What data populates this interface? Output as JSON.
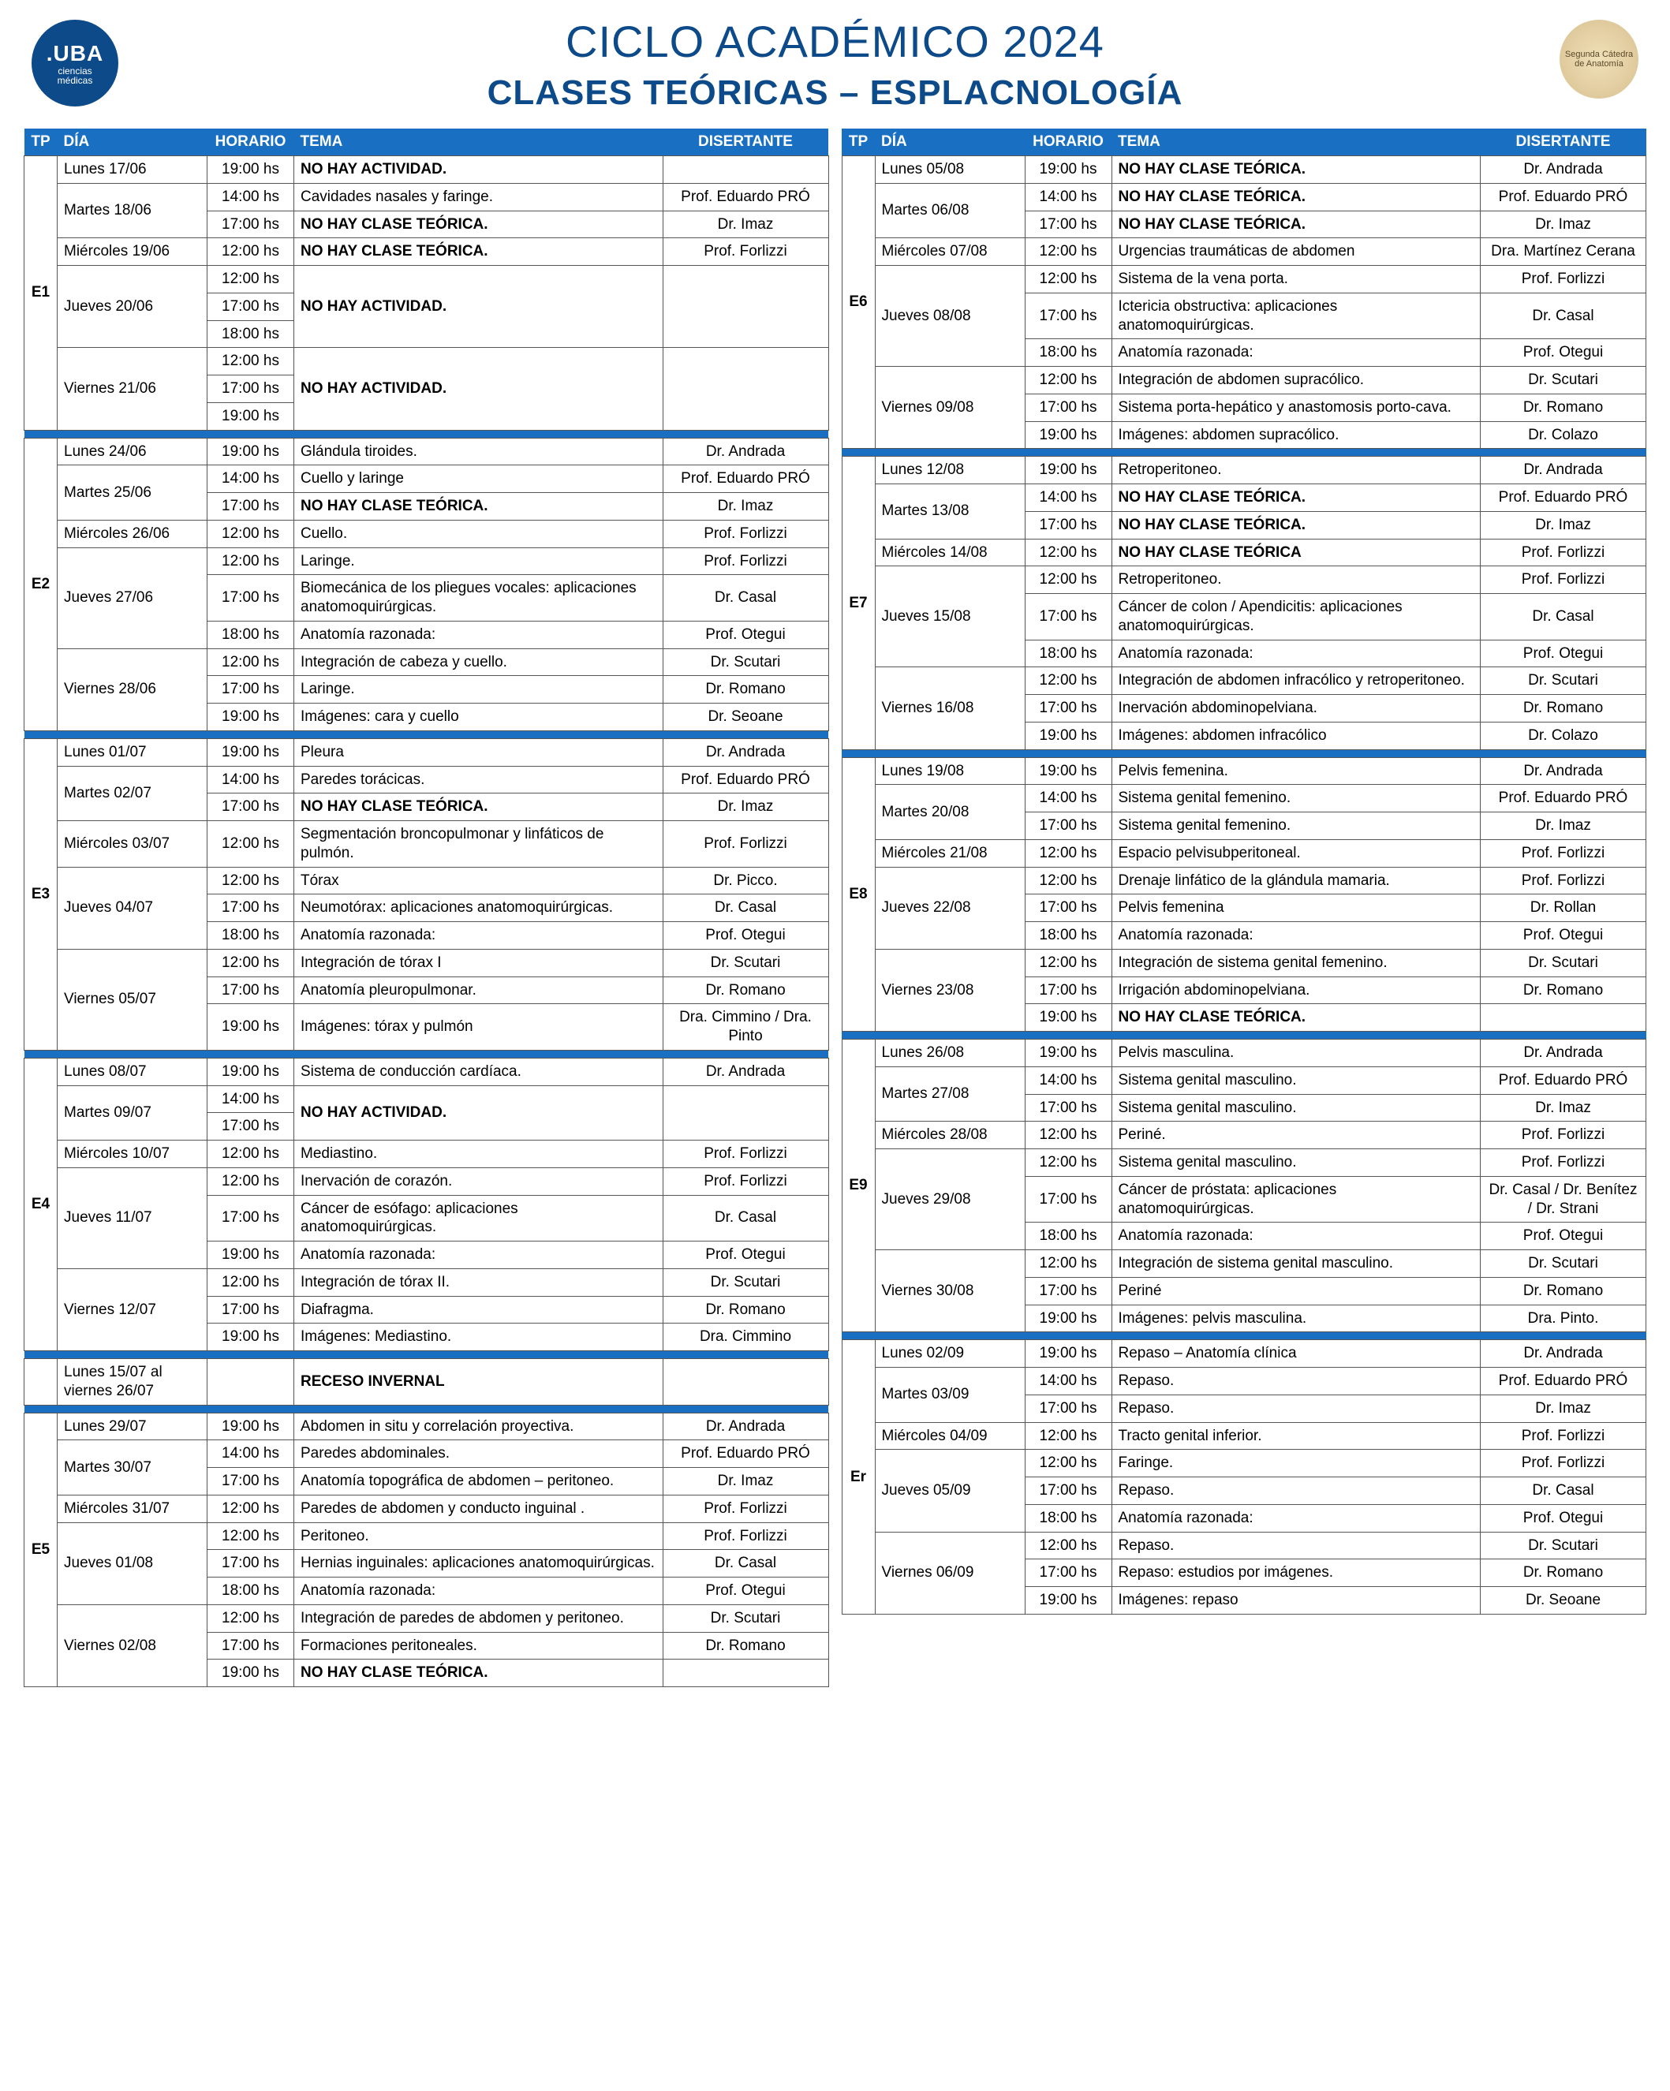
{
  "header": {
    "logo_left_main": ".UBA",
    "logo_left_sub1": "ciencias",
    "logo_left_sub2": "médicas",
    "logo_right": "Segunda Cátedra de Anatomía",
    "title1": "CICLO ACADÉMICO 2024",
    "title2": "CLASES TEÓRICAS – ESPLACNOLOGÍA"
  },
  "colhead": {
    "tp": "TP",
    "dia": "DÍA",
    "hor": "HORARIO",
    "tema": "TEMA",
    "dis": "DISERTANTE"
  },
  "left": [
    {
      "tp": "E1",
      "rows": [
        {
          "dia": "Lunes 17/06",
          "diaspan": 1,
          "hor": "19:00 hs",
          "tema": "NO HAY ACTIVIDAD.",
          "bold": true,
          "dis": "",
          "temaspan": 1
        },
        {
          "dia": "Martes 18/06",
          "diaspan": 2,
          "hor": "14:00 hs",
          "tema": "Cavidades nasales y faringe.",
          "dis": "Prof. Eduardo PRÓ"
        },
        {
          "hor": "17:00 hs",
          "tema": "NO HAY CLASE TEÓRICA.",
          "bold": true,
          "dis": "Dr. Imaz"
        },
        {
          "dia": "Miércoles 19/06",
          "diaspan": 1,
          "hor": "12:00 hs",
          "tema": "NO HAY CLASE TEÓRICA.",
          "bold": true,
          "dis": "Prof. Forlizzi"
        },
        {
          "dia": "Jueves 20/06",
          "diaspan": 3,
          "hor": "12:00 hs",
          "tema": "NO HAY ACTIVIDAD.",
          "bold": true,
          "temaspan": 3,
          "disspan": 3,
          "dis": ""
        },
        {
          "hor": "17:00 hs"
        },
        {
          "hor": "18:00 hs"
        },
        {
          "dia": "Viernes 21/06",
          "diaspan": 3,
          "hor": "12:00 hs",
          "tema": "NO HAY ACTIVIDAD.",
          "bold": true,
          "temaspan": 3,
          "disspan": 3,
          "dis": ""
        },
        {
          "hor": "17:00 hs"
        },
        {
          "hor": "19:00 hs"
        }
      ]
    },
    {
      "tp": "E2",
      "rows": [
        {
          "dia": "Lunes 24/06",
          "diaspan": 1,
          "hor": "19:00 hs",
          "tema": "Glándula tiroides.",
          "dis": "Dr. Andrada"
        },
        {
          "dia": "Martes 25/06",
          "diaspan": 2,
          "hor": "14:00 hs",
          "tema": "Cuello y laringe",
          "dis": "Prof. Eduardo PRÓ"
        },
        {
          "hor": "17:00 hs",
          "tema": "NO HAY CLASE TEÓRICA.",
          "bold": true,
          "dis": "Dr. Imaz"
        },
        {
          "dia": "Miércoles 26/06",
          "diaspan": 1,
          "hor": "12:00 hs",
          "tema": "Cuello.",
          "dis": "Prof. Forlizzi"
        },
        {
          "dia": "Jueves 27/06",
          "diaspan": 3,
          "hor": "12:00 hs",
          "tema": "Laringe.",
          "dis": "Prof. Forlizzi"
        },
        {
          "hor": "17:00 hs",
          "tema": "Biomecánica de los pliegues vocales: aplicaciones anatomoquirúrgicas.",
          "dis": "Dr. Casal"
        },
        {
          "hor": "18:00 hs",
          "tema": "Anatomía razonada:",
          "dis": "Prof. Otegui"
        },
        {
          "dia": "Viernes 28/06",
          "diaspan": 3,
          "hor": "12:00 hs",
          "tema": "Integración de cabeza y cuello.",
          "dis": "Dr. Scutari"
        },
        {
          "hor": "17:00 hs",
          "tema": "Laringe.",
          "dis": "Dr. Romano"
        },
        {
          "hor": "19:00 hs",
          "tema": "Imágenes:  cara y cuello",
          "dis": "Dr. Seoane"
        }
      ]
    },
    {
      "tp": "E3",
      "rows": [
        {
          "dia": "Lunes 01/07",
          "diaspan": 1,
          "hor": "19:00 hs",
          "tema": "Pleura",
          "dis": "Dr. Andrada"
        },
        {
          "dia": "Martes 02/07",
          "diaspan": 2,
          "hor": "14:00 hs",
          "tema": "Paredes torácicas.",
          "dis": "Prof. Eduardo PRÓ"
        },
        {
          "hor": "17:00 hs",
          "tema": "NO HAY CLASE TEÓRICA.",
          "bold": true,
          "dis": "Dr. Imaz"
        },
        {
          "dia": "Miércoles 03/07",
          "diaspan": 1,
          "hor": "12:00 hs",
          "tema": "Segmentación broncopulmonar y linfáticos de pulmón.",
          "dis": "Prof. Forlizzi"
        },
        {
          "dia": "Jueves 04/07",
          "diaspan": 3,
          "hor": "12:00 hs",
          "tema": "Tórax",
          "dis": "Dr. Picco."
        },
        {
          "hor": "17:00 hs",
          "tema": "Neumotórax: aplicaciones anatomoquirúrgicas.",
          "dis": "Dr. Casal"
        },
        {
          "hor": "18:00 hs",
          "tema": "Anatomía razonada:",
          "dis": "Prof. Otegui"
        },
        {
          "dia": "Viernes 05/07",
          "diaspan": 3,
          "hor": "12:00 hs",
          "tema": "Integración de tórax I",
          "dis": "Dr. Scutari"
        },
        {
          "hor": "17:00 hs",
          "tema": "Anatomía pleuropulmonar.",
          "dis": "Dr. Romano"
        },
        {
          "hor": "19:00 hs",
          "tema": "Imágenes: tórax y pulmón",
          "dis": "Dra. Cimmino / Dra. Pinto"
        }
      ]
    },
    {
      "tp": "E4",
      "rows": [
        {
          "dia": "Lunes 08/07",
          "diaspan": 1,
          "hor": "19:00 hs",
          "tema": "Sistema de conducción cardíaca.",
          "dis": "Dr. Andrada"
        },
        {
          "dia": "Martes 09/07",
          "diaspan": 2,
          "hor": "14:00 hs",
          "tema": "NO HAY ACTIVIDAD.",
          "bold": true,
          "temaspan": 2,
          "disspan": 2,
          "dis": ""
        },
        {
          "hor": "17:00 hs"
        },
        {
          "dia": "Miércoles 10/07",
          "diaspan": 1,
          "hor": "12:00 hs",
          "tema": "Mediastino.",
          "dis": "Prof. Forlizzi"
        },
        {
          "dia": "Jueves 11/07",
          "diaspan": 3,
          "hor": "12:00 hs",
          "tema": "Inervación de corazón.",
          "dis": "Prof. Forlizzi"
        },
        {
          "hor": "17:00 hs",
          "tema": "Cáncer de esófago: aplicaciones anatomoquirúrgicas.",
          "dis": "Dr. Casal"
        },
        {
          "hor": "19:00 hs",
          "tema": "Anatomía razonada:",
          "dis": "Prof. Otegui"
        },
        {
          "dia": "Viernes 12/07",
          "diaspan": 3,
          "hor": "12:00 hs",
          "tema": "Integración de tórax II.",
          "dis": "Dr. Scutari"
        },
        {
          "hor": "17:00 hs",
          "tema": "Diafragma.",
          "dis": "Dr. Romano"
        },
        {
          "hor": "19:00 hs",
          "tema": "Imágenes: Mediastino.",
          "dis": "Dra. Cimmino"
        }
      ]
    },
    {
      "tp": "",
      "rows": [
        {
          "dia": "Lunes 15/07 al viernes 26/07",
          "diaspan": 1,
          "hor": "",
          "tema": "RECESO INVERNAL",
          "bold": true,
          "dis": ""
        }
      ]
    },
    {
      "tp": "E5",
      "rows": [
        {
          "dia": "Lunes 29/07",
          "diaspan": 1,
          "hor": "19:00 hs",
          "tema": "Abdomen in situ y correlación proyectiva.",
          "dis": "Dr. Andrada"
        },
        {
          "dia": "Martes 30/07",
          "diaspan": 2,
          "hor": "14:00 hs",
          "tema": "Paredes abdominales.",
          "dis": "Prof. Eduardo PRÓ"
        },
        {
          "hor": "17:00 hs",
          "tema": "Anatomía topográfica de abdomen – peritoneo.",
          "dis": "Dr. Imaz"
        },
        {
          "dia": "Miércoles 31/07",
          "diaspan": 1,
          "hor": "12:00 hs",
          "tema": "Paredes de abdomen y conducto inguinal .",
          "dis": "Prof. Forlizzi"
        },
        {
          "dia": "Jueves 01/08",
          "diaspan": 3,
          "hor": "12:00 hs",
          "tema": "Peritoneo.",
          "dis": "Prof. Forlizzi"
        },
        {
          "hor": "17:00 hs",
          "tema": "Hernias inguinales: aplicaciones anatomoquirúrgicas.",
          "dis": "Dr. Casal"
        },
        {
          "hor": "18:00 hs",
          "tema": "Anatomía razonada:",
          "dis": "Prof. Otegui"
        },
        {
          "dia": "Viernes 02/08",
          "diaspan": 3,
          "hor": "12:00 hs",
          "tema": "Integración de paredes de abdomen y peritoneo.",
          "dis": "Dr. Scutari"
        },
        {
          "hor": "17:00 hs",
          "tema": "Formaciones peritoneales.",
          "dis": "Dr. Romano"
        },
        {
          "hor": "19:00 hs",
          "tema": "NO HAY CLASE TEÓRICA.",
          "bold": true,
          "dis": ""
        }
      ]
    }
  ],
  "right": [
    {
      "tp": "E6",
      "rows": [
        {
          "dia": "Lunes 05/08",
          "diaspan": 1,
          "hor": "19:00 hs",
          "tema": "NO HAY CLASE TEÓRICA.",
          "bold": true,
          "dis": "Dr. Andrada"
        },
        {
          "dia": "Martes 06/08",
          "diaspan": 2,
          "hor": "14:00 hs",
          "tema": "NO HAY CLASE TEÓRICA.",
          "bold": true,
          "dis": "Prof. Eduardo PRÓ"
        },
        {
          "hor": "17:00 hs",
          "tema": "NO HAY CLASE TEÓRICA.",
          "bold": true,
          "dis": "Dr. Imaz"
        },
        {
          "dia": "Miércoles 07/08",
          "diaspan": 1,
          "hor": "12:00 hs",
          "tema": "Urgencias traumáticas de abdomen",
          "dis": "Dra. Martínez Cerana"
        },
        {
          "dia": "Jueves 08/08",
          "diaspan": 3,
          "hor": "12:00 hs",
          "tema": "Sistema de la vena porta.",
          "dis": "Prof. Forlizzi"
        },
        {
          "hor": "17:00 hs",
          "tema": "Ictericia obstructiva: aplicaciones anatomoquirúrgicas.",
          "dis": "Dr. Casal"
        },
        {
          "hor": "18:00 hs",
          "tema": "Anatomía razonada:",
          "dis": "Prof. Otegui"
        },
        {
          "dia": "Viernes 09/08",
          "diaspan": 3,
          "hor": "12:00 hs",
          "tema": "Integración de abdomen supracólico.",
          "dis": "Dr. Scutari"
        },
        {
          "hor": "17:00 hs",
          "tema": "Sistema porta-hepático y anastomosis porto-cava.",
          "dis": "Dr. Romano"
        },
        {
          "hor": "19:00 hs",
          "tema": "Imágenes: abdomen supracólico.",
          "dis": "Dr. Colazo"
        }
      ]
    },
    {
      "tp": "E7",
      "rows": [
        {
          "dia": "Lunes 12/08",
          "diaspan": 1,
          "hor": "19:00 hs",
          "tema": "Retroperitoneo.",
          "dis": "Dr. Andrada"
        },
        {
          "dia": "Martes 13/08",
          "diaspan": 2,
          "hor": "14:00 hs",
          "tema": "NO HAY CLASE TEÓRICA.",
          "bold": true,
          "dis": "Prof. Eduardo PRÓ"
        },
        {
          "hor": "17:00 hs",
          "tema": "NO HAY CLASE TEÓRICA.",
          "bold": true,
          "dis": "Dr. Imaz"
        },
        {
          "dia": "Miércoles 14/08",
          "diaspan": 1,
          "hor": "12:00 hs",
          "tema": "NO HAY CLASE TEÓRICA",
          "bold": true,
          "dis": "Prof. Forlizzi"
        },
        {
          "dia": "Jueves 15/08",
          "diaspan": 3,
          "hor": "12:00 hs",
          "tema": "Retroperitoneo.",
          "dis": "Prof. Forlizzi"
        },
        {
          "hor": "17:00 hs",
          "tema": "Cáncer de colon / Apendicitis: aplicaciones anatomoquirúrgicas.",
          "dis": "Dr. Casal"
        },
        {
          "hor": "18:00 hs",
          "tema": "Anatomía razonada:",
          "dis": "Prof. Otegui"
        },
        {
          "dia": "Viernes 16/08",
          "diaspan": 3,
          "hor": "12:00 hs",
          "tema": "Integración de abdomen infracólico y retroperitoneo.",
          "dis": "Dr. Scutari"
        },
        {
          "hor": "17:00 hs",
          "tema": "Inervación abdominopelviana.",
          "dis": "Dr. Romano"
        },
        {
          "hor": "19:00 hs",
          "tema": "Imágenes: abdomen infracólico",
          "dis": "Dr. Colazo"
        }
      ]
    },
    {
      "tp": "E8",
      "rows": [
        {
          "dia": "Lunes 19/08",
          "diaspan": 1,
          "hor": "19:00 hs",
          "tema": "Pelvis femenina.",
          "dis": "Dr. Andrada"
        },
        {
          "dia": "Martes 20/08",
          "diaspan": 2,
          "hor": "14:00 hs",
          "tema": "Sistema genital femenino.",
          "dis": "Prof. Eduardo PRÓ"
        },
        {
          "hor": "17:00 hs",
          "tema": "Sistema genital femenino.",
          "dis": "Dr. Imaz"
        },
        {
          "dia": "Miércoles 21/08",
          "diaspan": 1,
          "hor": "12:00 hs",
          "tema": "Espacio pelvisubperitoneal.",
          "dis": "Prof. Forlizzi"
        },
        {
          "dia": "Jueves 22/08",
          "diaspan": 3,
          "hor": "12:00 hs",
          "tema": "Drenaje linfático de la glándula mamaria.",
          "dis": "Prof. Forlizzi"
        },
        {
          "hor": "17:00 hs",
          "tema": "Pelvis femenina",
          "dis": "Dr. Rollan"
        },
        {
          "hor": "18:00 hs",
          "tema": "Anatomía razonada:",
          "dis": "Prof. Otegui"
        },
        {
          "dia": "Viernes 23/08",
          "diaspan": 3,
          "hor": "12:00 hs",
          "tema": "Integración de sistema genital femenino.",
          "dis": "Dr. Scutari"
        },
        {
          "hor": "17:00 hs",
          "tema": "Irrigación abdominopelviana.",
          "dis": "Dr. Romano"
        },
        {
          "hor": "19:00 hs",
          "tema": "NO HAY CLASE TEÓRICA.",
          "bold": true,
          "dis": ""
        }
      ]
    },
    {
      "tp": "E9",
      "rows": [
        {
          "dia": "Lunes 26/08",
          "diaspan": 1,
          "hor": "19:00 hs",
          "tema": "Pelvis masculina.",
          "dis": "Dr. Andrada"
        },
        {
          "dia": "Martes 27/08",
          "diaspan": 2,
          "hor": "14:00 hs",
          "tema": "Sistema genital masculino.",
          "dis": "Prof. Eduardo PRÓ"
        },
        {
          "hor": "17:00 hs",
          "tema": "Sistema genital masculino.",
          "dis": "Dr. Imaz"
        },
        {
          "dia": "Miércoles 28/08",
          "diaspan": 1,
          "hor": "12:00 hs",
          "tema": "Periné.",
          "dis": "Prof. Forlizzi"
        },
        {
          "dia": "Jueves 29/08",
          "diaspan": 3,
          "hor": "12:00 hs",
          "tema": "Sistema genital masculino.",
          "dis": "Prof. Forlizzi"
        },
        {
          "hor": "17:00 hs",
          "tema": "Cáncer de próstata: aplicaciones anatomoquirúrgicas.",
          "dis": "Dr. Casal / Dr. Benítez / Dr. Strani"
        },
        {
          "hor": "18:00 hs",
          "tema": "Anatomía razonada:",
          "dis": "Prof. Otegui"
        },
        {
          "dia": "Viernes 30/08",
          "diaspan": 3,
          "hor": "12:00 hs",
          "tema": "Integración de sistema genital masculino.",
          "dis": "Dr. Scutari"
        },
        {
          "hor": "17:00 hs",
          "tema": "Periné",
          "dis": "Dr. Romano"
        },
        {
          "hor": "19:00 hs",
          "tema": "Imágenes: pelvis masculina.",
          "dis": "Dra. Pinto."
        }
      ]
    },
    {
      "tp": "Er",
      "rows": [
        {
          "dia": "Lunes 02/09",
          "diaspan": 1,
          "hor": "19:00 hs",
          "tema": "Repaso – Anatomía clínica",
          "dis": "Dr. Andrada"
        },
        {
          "dia": "Martes 03/09",
          "diaspan": 2,
          "hor": "14:00 hs",
          "tema": "Repaso.",
          "dis": "Prof. Eduardo PRÓ"
        },
        {
          "hor": "17:00 hs",
          "tema": "Repaso.",
          "dis": "Dr. Imaz"
        },
        {
          "dia": "Miércoles 04/09",
          "diaspan": 1,
          "hor": "12:00 hs",
          "tema": "Tracto genital inferior.",
          "dis": "Prof. Forlizzi"
        },
        {
          "dia": "Jueves 05/09",
          "diaspan": 3,
          "hor": "12:00 hs",
          "tema": "Faringe.",
          "dis": "Prof. Forlizzi"
        },
        {
          "hor": "17:00 hs",
          "tema": "Repaso.",
          "dis": "Dr. Casal"
        },
        {
          "hor": "18:00 hs",
          "tema": "Anatomía razonada:",
          "dis": "Prof. Otegui"
        },
        {
          "dia": "Viernes 06/09",
          "diaspan": 3,
          "hor": "12:00 hs",
          "tema": "Repaso.",
          "dis": "Dr. Scutari"
        },
        {
          "hor": "17:00 hs",
          "tema": "Repaso: estudios por imágenes.",
          "dis": "Dr. Romano"
        },
        {
          "hor": "19:00 hs",
          "tema": "Imágenes: repaso",
          "dis": "Dr. Seoane"
        }
      ]
    }
  ]
}
